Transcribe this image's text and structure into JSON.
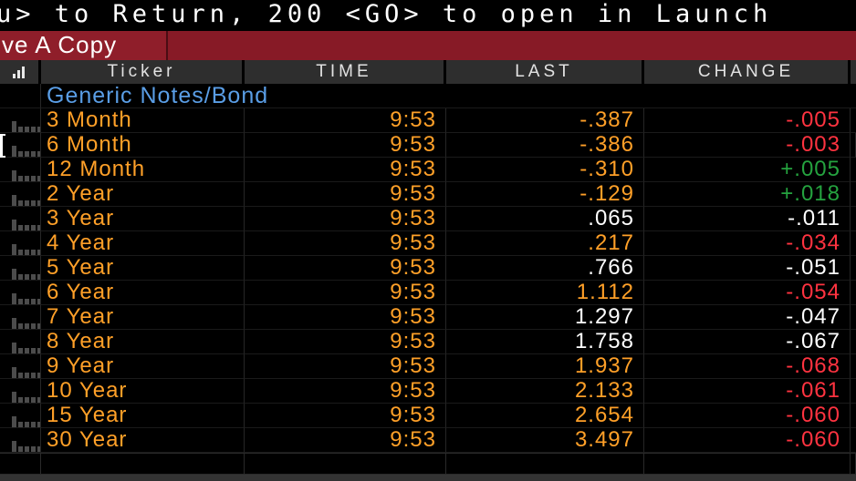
{
  "topbar": {
    "text": "u> to Return, 200 <GO> to open in Launch"
  },
  "toolbar": {
    "copy_label": "ve A Copy"
  },
  "table": {
    "headers": {
      "ticker": "Ticker",
      "time": "TIME",
      "last": "LAST",
      "change": "CHANGE"
    },
    "section_label": "Generic Notes/Bond",
    "rows": [
      {
        "ticker": "3 Month",
        "time": "9:53",
        "last": "-.387",
        "change": "-.005",
        "last_color": "orange",
        "change_color": "red"
      },
      {
        "ticker": "6 Month",
        "time": "9:53",
        "last": "-.386",
        "change": "-.003",
        "last_color": "orange",
        "change_color": "red",
        "focus": true
      },
      {
        "ticker": "12 Month",
        "time": "9:53",
        "last": "-.310",
        "change": "+.005",
        "last_color": "orange",
        "change_color": "green"
      },
      {
        "ticker": "2 Year",
        "time": "9:53",
        "last": "-.129",
        "change": "+.018",
        "last_color": "orange",
        "change_color": "green"
      },
      {
        "ticker": "3 Year",
        "time": "9:53",
        "last": ".065",
        "change": "-.011",
        "last_color": "white",
        "change_color": "white"
      },
      {
        "ticker": "4 Year",
        "time": "9:53",
        "last": ".217",
        "change": "-.034",
        "last_color": "orange",
        "change_color": "red"
      },
      {
        "ticker": "5 Year",
        "time": "9:53",
        "last": ".766",
        "change": "-.051",
        "last_color": "white",
        "change_color": "white"
      },
      {
        "ticker": "6 Year",
        "time": "9:53",
        "last": "1.112",
        "change": "-.054",
        "last_color": "orange",
        "change_color": "red"
      },
      {
        "ticker": "7 Year",
        "time": "9:53",
        "last": "1.297",
        "change": "-.047",
        "last_color": "white",
        "change_color": "white"
      },
      {
        "ticker": "8 Year",
        "time": "9:53",
        "last": "1.758",
        "change": "-.067",
        "last_color": "white",
        "change_color": "white"
      },
      {
        "ticker": "9 Year",
        "time": "9:53",
        "last": "1.937",
        "change": "-.068",
        "last_color": "orange",
        "change_color": "red"
      },
      {
        "ticker": "10 Year",
        "time": "9:53",
        "last": "2.133",
        "change": "-.061",
        "last_color": "orange",
        "change_color": "red"
      },
      {
        "ticker": "15 Year",
        "time": "9:53",
        "last": "2.654",
        "change": "-.060",
        "last_color": "orange",
        "change_color": "red"
      },
      {
        "ticker": "30 Year",
        "time": "9:53",
        "last": "3.497",
        "change": "-.060",
        "last_color": "orange",
        "change_color": "red"
      }
    ]
  },
  "colors": {
    "orange": "#ffa028",
    "white": "#ffffff",
    "red": "#ff3340",
    "green": "#25a33f",
    "blue": "#5a9ee6",
    "redbar": "#871a26",
    "redbtn": "#8f1e2a"
  }
}
